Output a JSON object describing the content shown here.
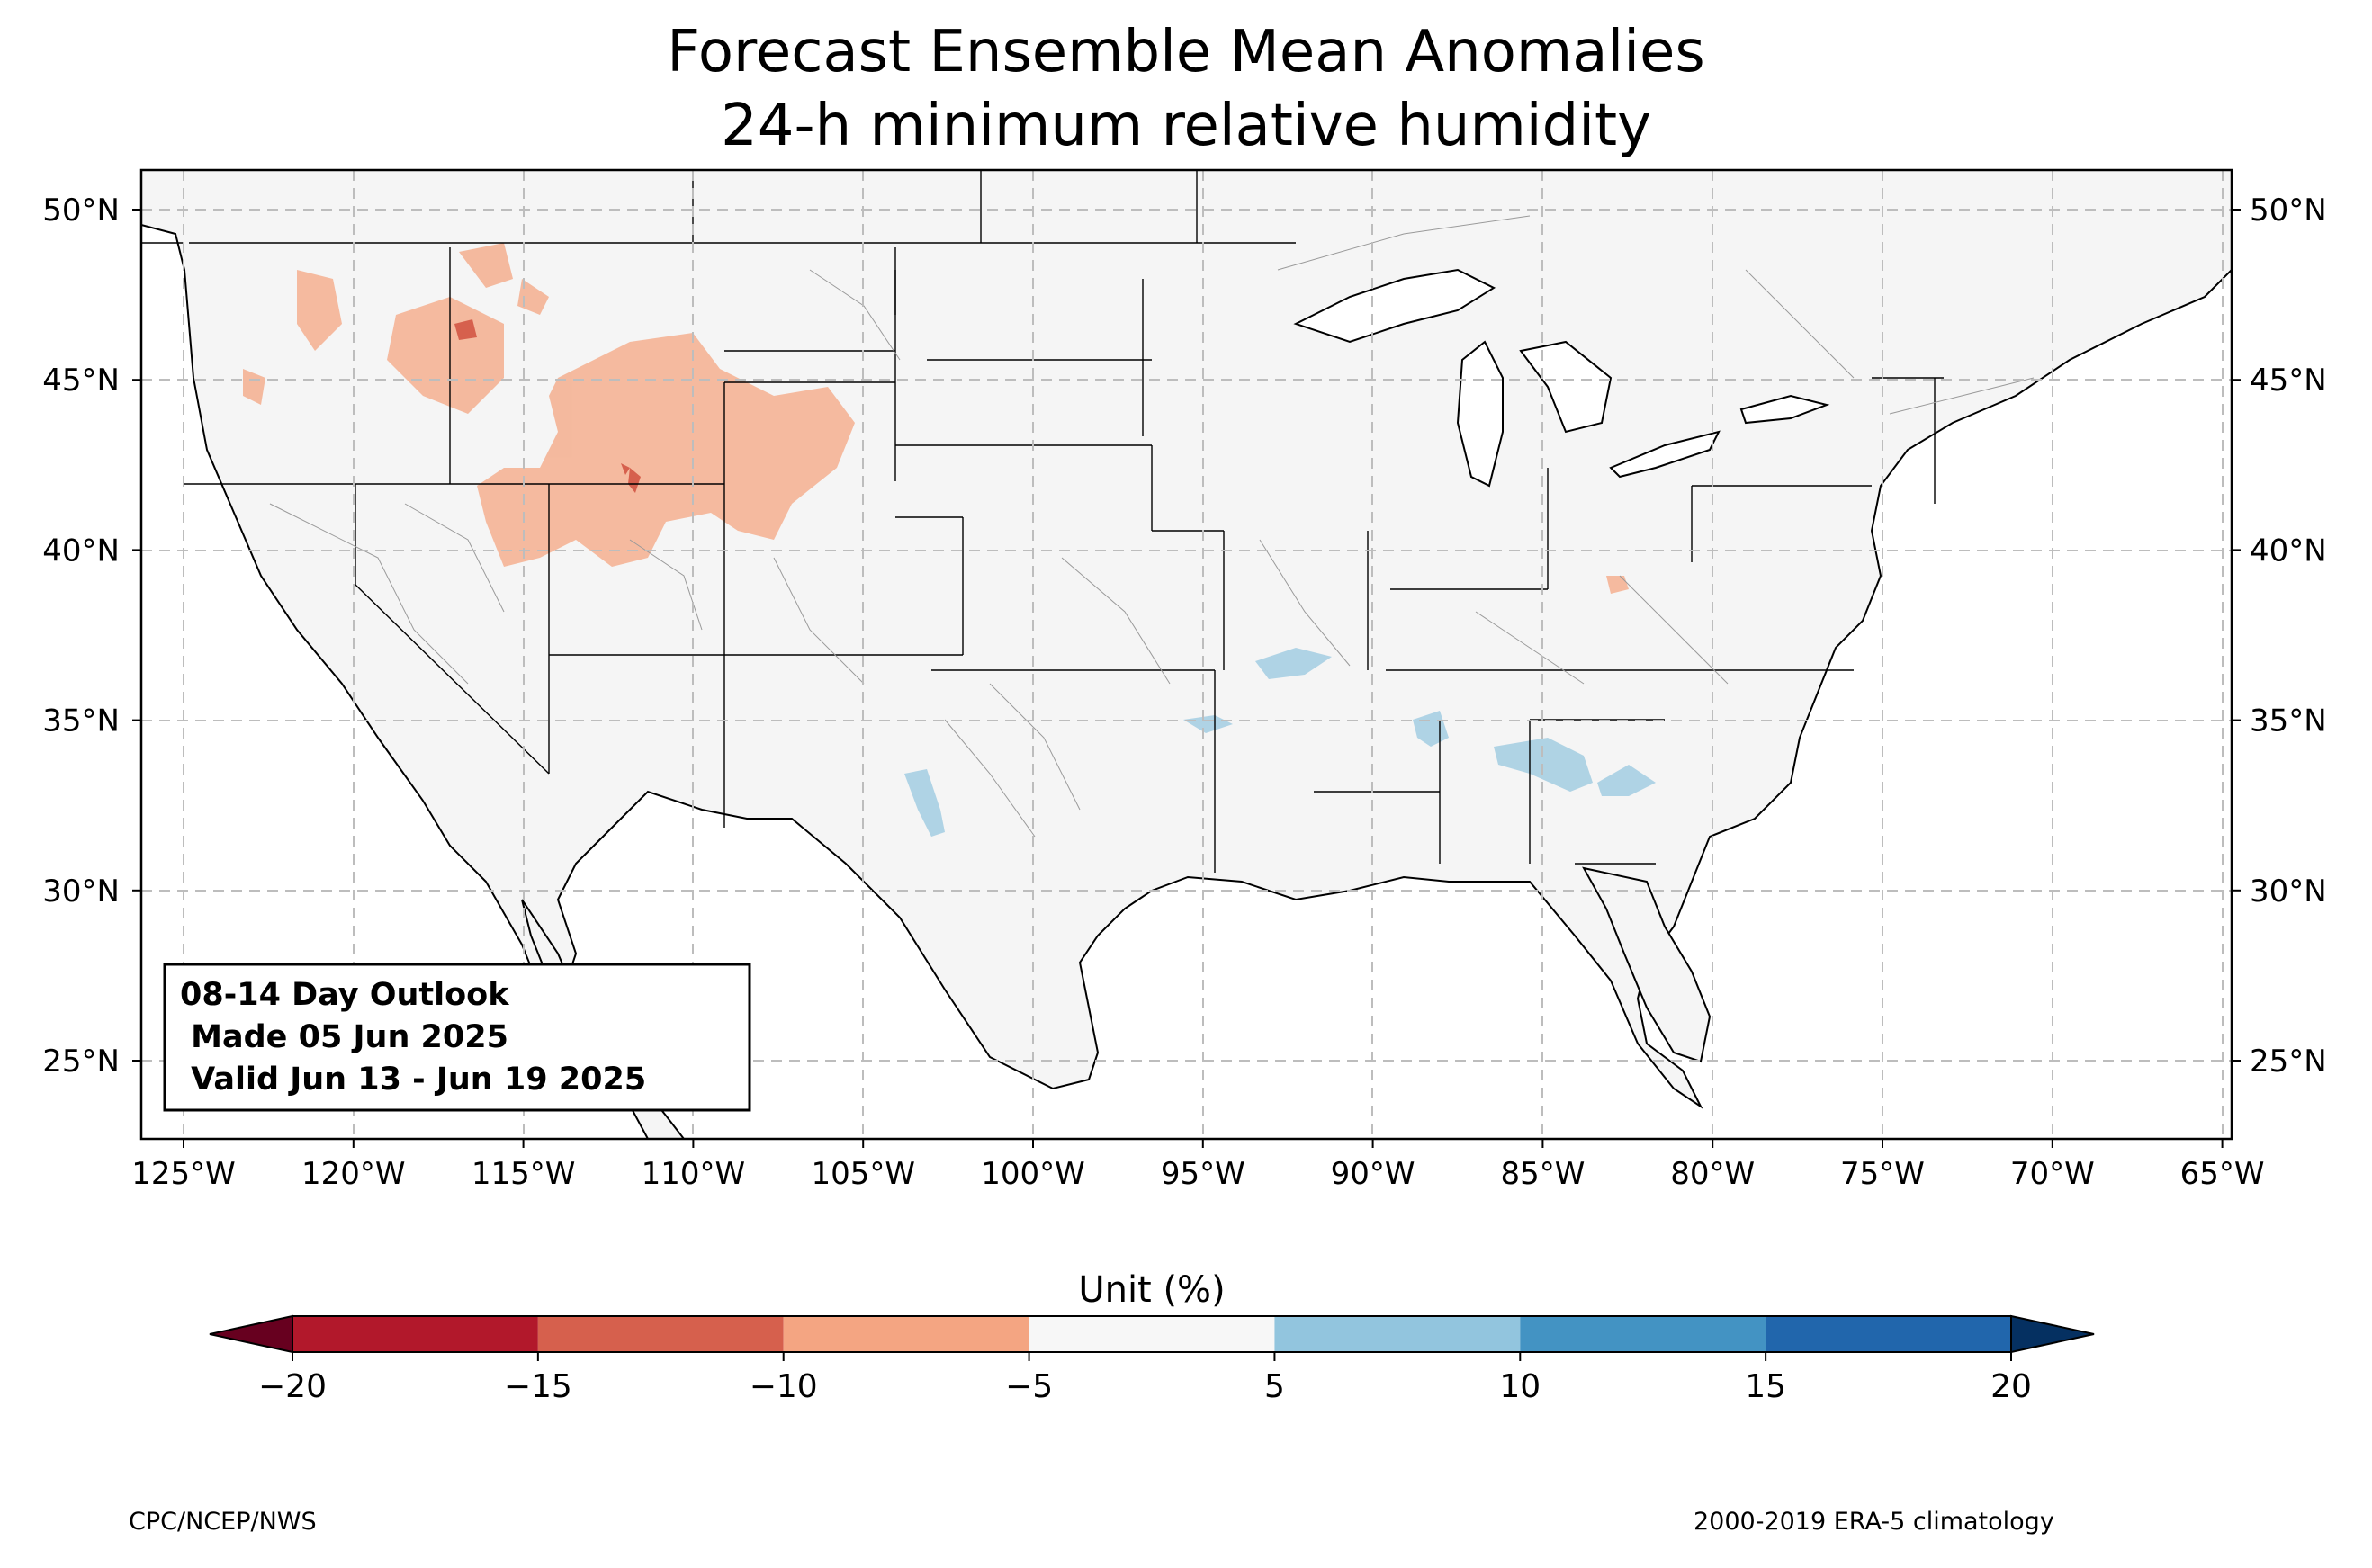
{
  "title": "Forecast Ensemble Mean Anomalies",
  "subtitle": "24-h minimum relative humidity",
  "info_box": {
    "line1": "08-14 Day Outlook",
    "line2": " Made 05 Jun 2025",
    "line3": " Valid Jun 13 - Jun 19 2025"
  },
  "axes": {
    "lon_labels": [
      "125°W",
      "120°W",
      "115°W",
      "110°W",
      "105°W",
      "100°W",
      "95°W",
      "90°W",
      "85°W",
      "80°W",
      "75°W",
      "70°W",
      "65°W"
    ],
    "lat_labels": [
      "50°N",
      "45°N",
      "40°N",
      "35°N",
      "30°N",
      "25°N"
    ]
  },
  "colorbar": {
    "label": "Unit (%)",
    "ticks": [
      "−20",
      "−15",
      "−10",
      "−5",
      "5",
      "10",
      "15",
      "20"
    ],
    "colors": [
      "#b2182b",
      "#d6604d",
      "#f4a582",
      "#f7f7f7",
      "#92c5de",
      "#4393c3",
      "#2166ac"
    ],
    "extend_low": "#67001f",
    "extend_high": "#053061"
  },
  "footer": {
    "source": "CPC/NCEP/NWS",
    "climatology": "2000-2019 ERA-5 climatology"
  }
}
